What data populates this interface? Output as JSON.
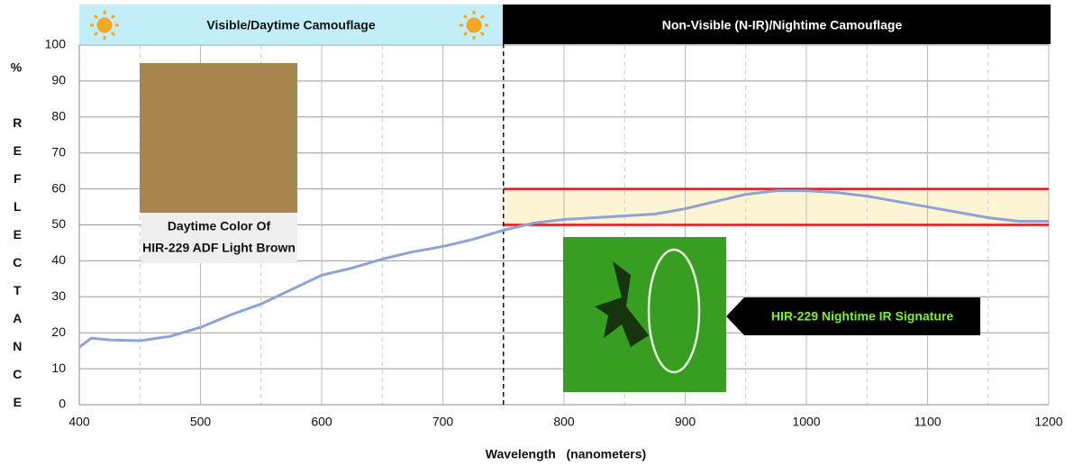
{
  "chart_data": {
    "type": "line",
    "header_left": "Visible/Daytime Camouflage",
    "header_right": "Non-Visible (N-IR)/Nightime Camouflage",
    "ylabel_unit": "%",
    "ylabel": "REFLECTANCE",
    "xlabel": "Wavelength   (nanometers)",
    "swatch_label": [
      "Daytime Color Of",
      "HIR-229 ADF Light Brown"
    ],
    "callout": "HIR-229 Nightime IR Signature",
    "x": [
      400,
      410,
      425,
      450,
      475,
      500,
      525,
      550,
      575,
      600,
      625,
      650,
      675,
      700,
      725,
      750,
      775,
      800,
      825,
      850,
      875,
      900,
      925,
      950,
      975,
      1000,
      1025,
      1050,
      1075,
      1100,
      1125,
      1150,
      1175,
      1200
    ],
    "series": [
      {
        "name": "HIR-229 ADF Light Brown",
        "color": "#8fa2d4",
        "values": [
          16,
          18.5,
          18,
          17.8,
          19,
          21.5,
          25,
          28,
          32,
          36,
          38,
          40.5,
          42.5,
          44,
          46,
          48.5,
          50.5,
          51.5,
          52,
          52.5,
          53,
          54.5,
          56.5,
          58.5,
          59.5,
          59.5,
          59,
          58,
          56.5,
          55,
          53.5,
          52,
          51,
          51
        ]
      }
    ],
    "band": [
      50,
      60
    ],
    "band_xrange": [
      750,
      1200
    ],
    "divider_x": 750,
    "xlim": [
      400,
      1200
    ],
    "xticks": [
      400,
      500,
      600,
      700,
      800,
      900,
      1000,
      1100,
      1200
    ],
    "xminor_ticks": [
      450,
      550,
      650,
      750,
      850,
      950,
      1050,
      1150
    ],
    "ylim": [
      0,
      100
    ],
    "yticks": [
      0,
      10,
      20,
      30,
      40,
      50,
      60,
      70,
      80,
      90,
      100
    ],
    "grid": true
  }
}
